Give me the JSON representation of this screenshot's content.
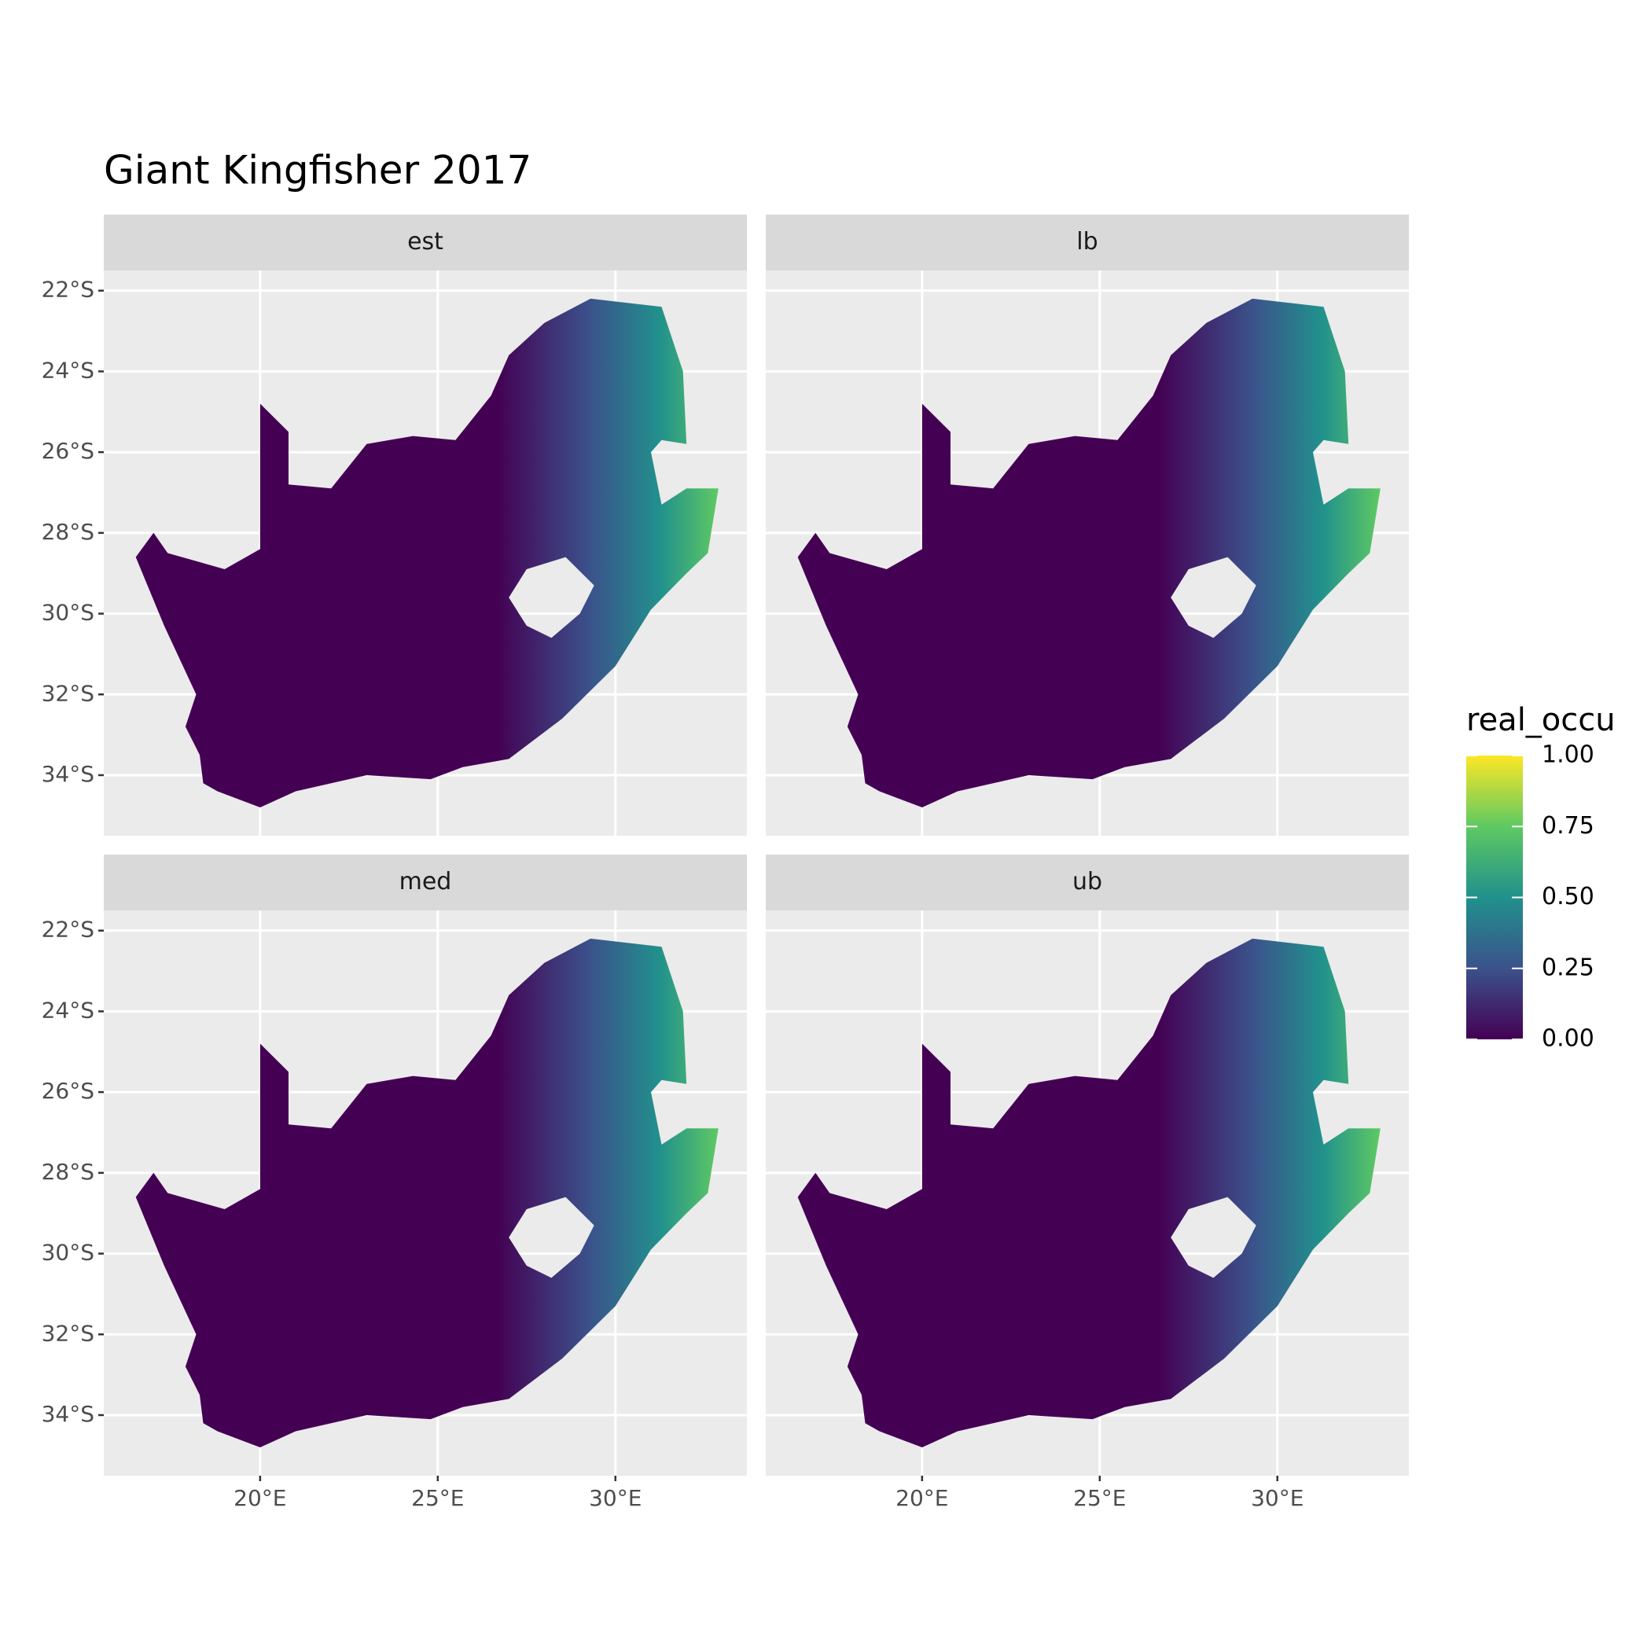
{
  "chart_data": {
    "type": "raster_map",
    "title": "Giant Kingfisher 2017",
    "facets": [
      "est",
      "lb",
      "med",
      "ub"
    ],
    "xlim": [
      15.6,
      33.7
    ],
    "ylim": [
      -35.5,
      -21.5
    ],
    "xticks": [
      {
        "value": 20,
        "label": "20°E"
      },
      {
        "value": 25,
        "label": "25°E"
      },
      {
        "value": 30,
        "label": "30°E"
      }
    ],
    "yticks": [
      {
        "value": -22,
        "label": "22°S"
      },
      {
        "value": -24,
        "label": "24°S"
      },
      {
        "value": -26,
        "label": "26°S"
      },
      {
        "value": -28,
        "label": "28°S"
      },
      {
        "value": -30,
        "label": "30°S"
      },
      {
        "value": -32,
        "label": "32°S"
      },
      {
        "value": -34,
        "label": "34°S"
      }
    ],
    "grid": true,
    "legend": {
      "title": "real_occu",
      "position": "right",
      "limits": [
        0,
        1
      ],
      "ticks": [
        {
          "value": 0,
          "label": "0.00"
        },
        0.25,
        {
          "value": 0.5,
          "label": "0.50"
        },
        0.75,
        {
          "value": 1,
          "label": "1.00"
        }
      ],
      "colors": [
        "#440154",
        "#3b528b",
        "#21918c",
        "#5ec962",
        "#fde725"
      ]
    }
  }
}
